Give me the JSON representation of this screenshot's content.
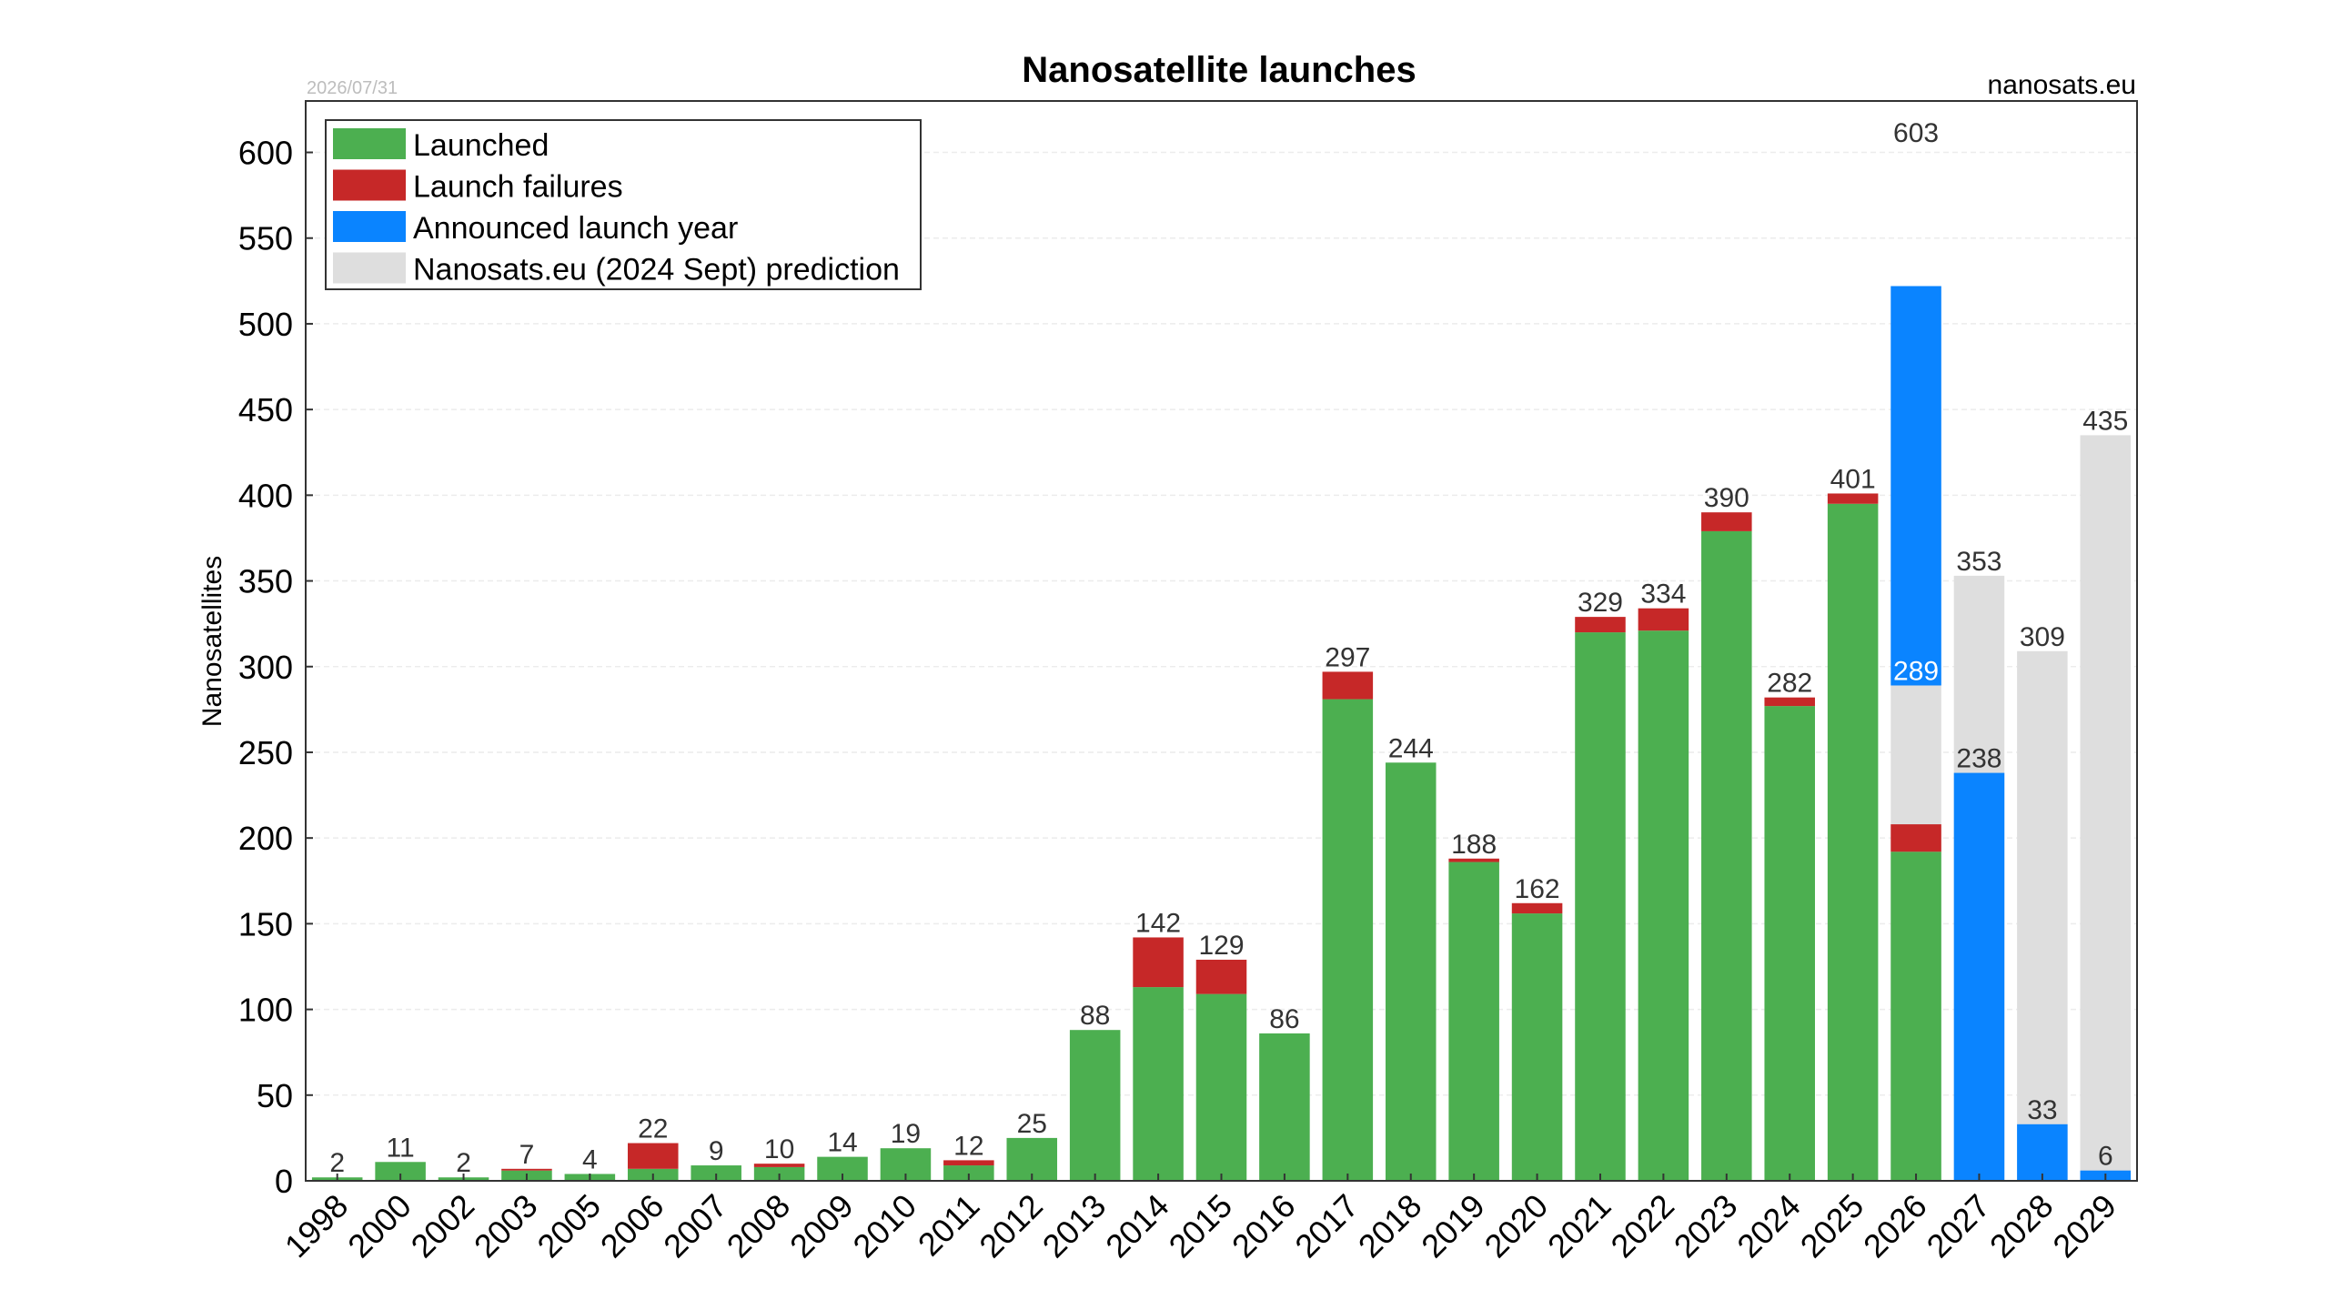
{
  "chart_data": {
    "type": "bar",
    "title": "Nanosatellite launches",
    "date_stamp": "2026/07/31",
    "source": "nanosats.eu",
    "ylabel": "Nanosatellites",
    "xlabel": "",
    "ylim": [
      0,
      630
    ],
    "yticks": [
      0,
      50,
      100,
      150,
      200,
      250,
      300,
      350,
      400,
      450,
      500,
      550,
      600
    ],
    "grid": true,
    "legend_position": "top-left",
    "categories": [
      "1998",
      "2000",
      "2002",
      "2003",
      "2005",
      "2006",
      "2007",
      "2008",
      "2009",
      "2010",
      "2011",
      "2012",
      "2013",
      "2014",
      "2015",
      "2016",
      "2017",
      "2018",
      "2019",
      "2020",
      "2021",
      "2022",
      "2023",
      "2024",
      "2025",
      "2026",
      "2027",
      "2028",
      "2029"
    ],
    "series": [
      {
        "name": "Launched",
        "color": "#4caf50",
        "values": [
          2,
          11,
          2,
          6,
          4,
          7,
          9,
          8,
          14,
          19,
          9,
          25,
          88,
          113,
          109,
          86,
          281,
          244,
          186,
          156,
          320,
          321,
          379,
          277,
          395,
          192,
          0,
          0,
          0
        ]
      },
      {
        "name": "Launch failures",
        "color": "#c62828",
        "values": [
          0,
          0,
          0,
          1,
          0,
          15,
          0,
          2,
          0,
          0,
          3,
          0,
          0,
          29,
          20,
          0,
          16,
          0,
          2,
          6,
          9,
          13,
          11,
          5,
          6,
          16,
          0,
          0,
          0
        ]
      },
      {
        "name": "Announced launch year",
        "color": "#0a84ff",
        "values": [
          0,
          0,
          0,
          0,
          0,
          0,
          0,
          0,
          0,
          0,
          0,
          0,
          0,
          0,
          0,
          0,
          0,
          0,
          0,
          0,
          0,
          0,
          0,
          0,
          0,
          314,
          238,
          33,
          6
        ]
      },
      {
        "name": "Nanosats.eu (2024 Sept) prediction",
        "color": "#dedede",
        "values": [
          0,
          0,
          0,
          0,
          0,
          0,
          0,
          0,
          0,
          0,
          0,
          0,
          0,
          0,
          0,
          0,
          0,
          0,
          0,
          0,
          0,
          0,
          0,
          0,
          0,
          289,
          353,
          309,
          435
        ]
      }
    ],
    "bar_labels": [
      {
        "category": "1998",
        "value": 2,
        "text": "2"
      },
      {
        "category": "2000",
        "value": 11,
        "text": "11"
      },
      {
        "category": "2002",
        "value": 2,
        "text": "2"
      },
      {
        "category": "2003",
        "value": 7,
        "text": "7"
      },
      {
        "category": "2005",
        "value": 4,
        "text": "4"
      },
      {
        "category": "2006",
        "value": 22,
        "text": "22"
      },
      {
        "category": "2007",
        "value": 9,
        "text": "9"
      },
      {
        "category": "2008",
        "value": 10,
        "text": "10"
      },
      {
        "category": "2009",
        "value": 14,
        "text": "14"
      },
      {
        "category": "2010",
        "value": 19,
        "text": "19"
      },
      {
        "category": "2011",
        "value": 12,
        "text": "12"
      },
      {
        "category": "2012",
        "value": 25,
        "text": "25"
      },
      {
        "category": "2013",
        "value": 88,
        "text": "88"
      },
      {
        "category": "2014",
        "value": 142,
        "text": "142"
      },
      {
        "category": "2015",
        "value": 129,
        "text": "129"
      },
      {
        "category": "2016",
        "value": 86,
        "text": "86"
      },
      {
        "category": "2017",
        "value": 297,
        "text": "297"
      },
      {
        "category": "2018",
        "value": 244,
        "text": "244"
      },
      {
        "category": "2019",
        "value": 188,
        "text": "188"
      },
      {
        "category": "2020",
        "value": 162,
        "text": "162"
      },
      {
        "category": "2021",
        "value": 329,
        "text": "329"
      },
      {
        "category": "2022",
        "value": 334,
        "text": "334"
      },
      {
        "category": "2023",
        "value": 390,
        "text": "390"
      },
      {
        "category": "2024",
        "value": 282,
        "text": "282"
      },
      {
        "category": "2025",
        "value": 401,
        "text": "401"
      },
      {
        "category": "2026",
        "value": 603,
        "text": "603"
      },
      {
        "category": "2026",
        "value": 289,
        "text": "289",
        "inside": true
      },
      {
        "category": "2027",
        "value": 353,
        "text": "353"
      },
      {
        "category": "2027",
        "value": 238,
        "text": "238"
      },
      {
        "category": "2028",
        "value": 309,
        "text": "309"
      },
      {
        "category": "2028",
        "value": 33,
        "text": "33"
      },
      {
        "category": "2029",
        "value": 435,
        "text": "435"
      },
      {
        "category": "2029",
        "value": 6,
        "text": "6"
      }
    ]
  }
}
